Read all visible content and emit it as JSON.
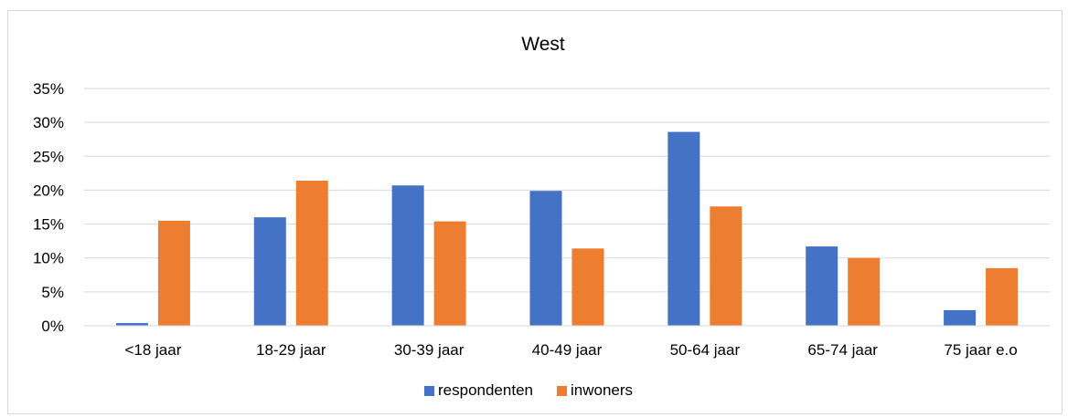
{
  "chart_data": {
    "type": "bar",
    "title": "West",
    "xlabel": "",
    "ylabel": "",
    "categories": [
      "<18 jaar",
      "18-29 jaar",
      "30-39 jaar",
      "40-49 jaar",
      "50-64 jaar",
      "65-74 jaar",
      "75 jaar e.o"
    ],
    "series": [
      {
        "name": "respondenten",
        "color": "#4472c4",
        "values": [
          0.4,
          16.0,
          20.7,
          19.9,
          28.6,
          11.7,
          2.3
        ]
      },
      {
        "name": "inwoners",
        "color": "#ed7d31",
        "values": [
          15.5,
          21.4,
          15.4,
          11.4,
          17.6,
          10.0,
          8.5
        ]
      }
    ],
    "ylim": [
      0,
      35
    ],
    "yticks": [
      0,
      5,
      10,
      15,
      20,
      25,
      30,
      35
    ],
    "ytick_labels": [
      "0%",
      "5%",
      "10%",
      "15%",
      "20%",
      "25%",
      "30%",
      "35%"
    ],
    "grid": true,
    "legend_position": "bottom"
  }
}
